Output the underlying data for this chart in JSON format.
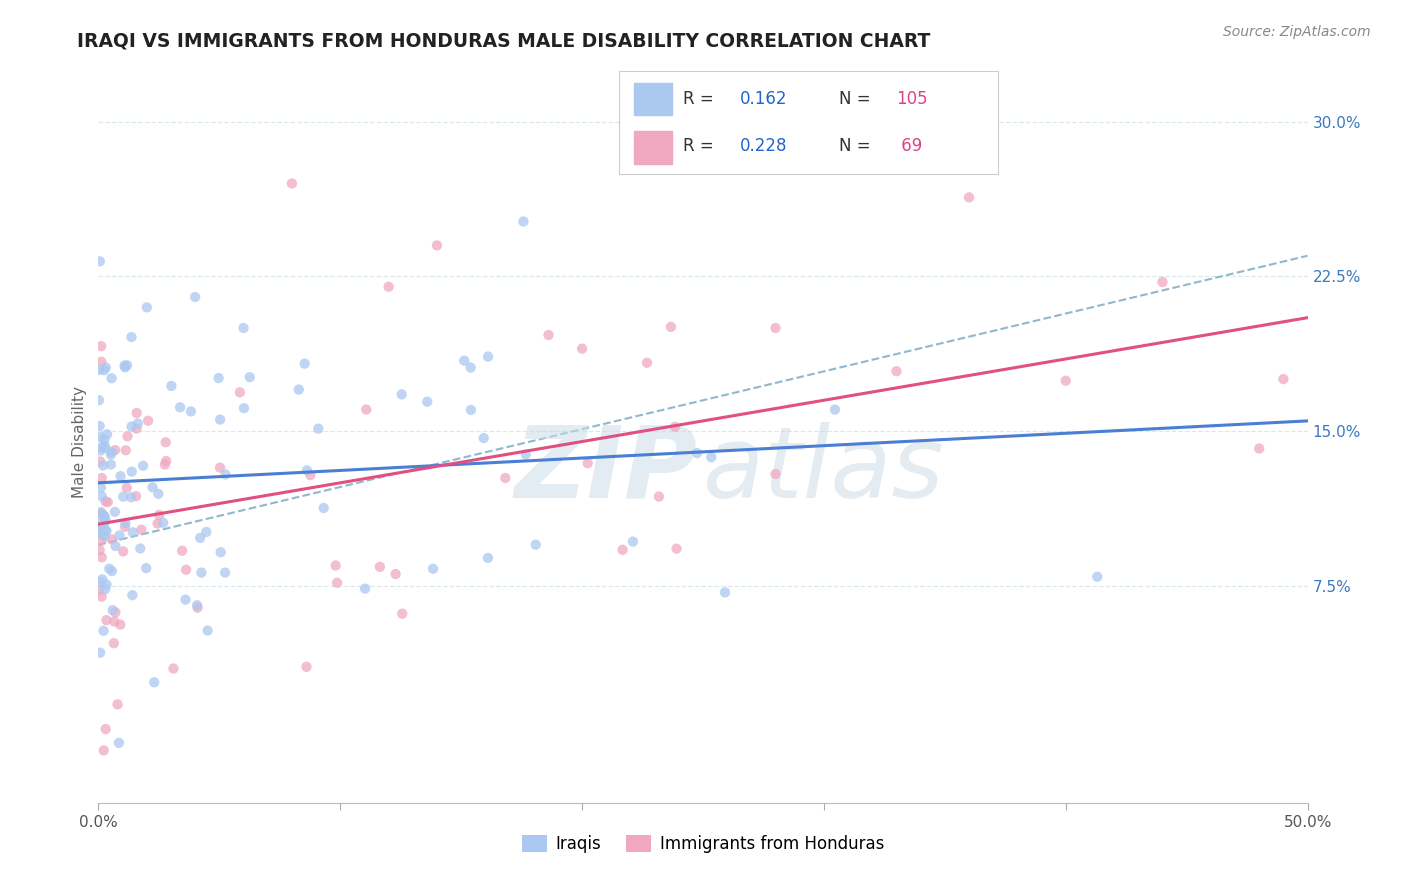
{
  "title": "IRAQI VS IMMIGRANTS FROM HONDURAS MALE DISABILITY CORRELATION CHART",
  "source": "Source: ZipAtlas.com",
  "ylabel": "Male Disability",
  "xlim": [
    0.0,
    0.5
  ],
  "ylim": [
    -0.03,
    0.32
  ],
  "yticks": [
    0.075,
    0.15,
    0.225,
    0.3
  ],
  "ytick_labels": [
    "7.5%",
    "15.0%",
    "22.5%",
    "30.0%"
  ],
  "xticks": [
    0.0,
    0.1,
    0.2,
    0.3,
    0.4,
    0.5
  ],
  "xtick_labels": [
    "0.0%",
    "",
    "",
    "",
    "",
    "50.0%"
  ],
  "legend_label1": "Iraqis",
  "legend_label2": "Immigrants from Honduras",
  "color_iraqi": "#aac8f0",
  "color_honduras": "#f0a8c0",
  "color_line_iraqi": "#4a7fd4",
  "color_line_honduras": "#e05080",
  "color_dashed_line": "#90b8cc",
  "background_color": "#ffffff",
  "grid_color": "#d8e8f0",
  "R1": 0.162,
  "R2": 0.228,
  "N1": 105,
  "N2": 69,
  "iraqi_line": [
    0.0,
    0.125,
    0.5,
    0.155
  ],
  "honduras_line": [
    0.0,
    0.105,
    0.5,
    0.205
  ],
  "dashed_line": [
    0.0,
    0.095,
    0.5,
    0.235
  ]
}
